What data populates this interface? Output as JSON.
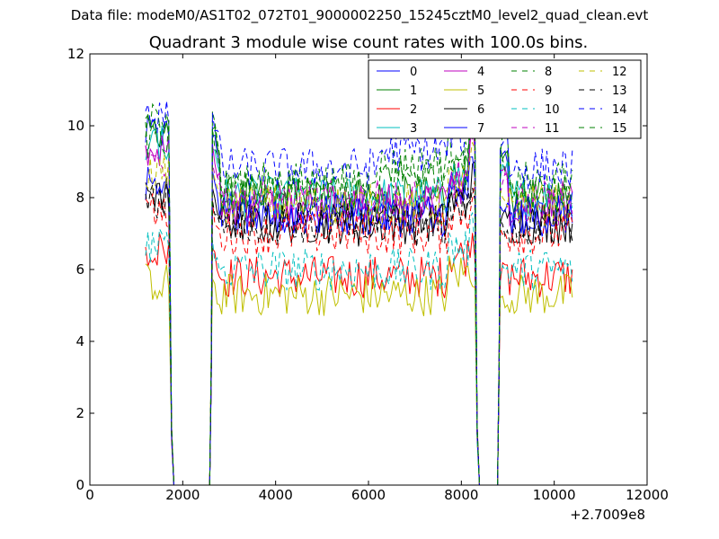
{
  "figure": {
    "suptitle": "Data file: modeM0/AS1T02_072T01_9000002250_15245cztM0_level2_quad_clean.evt",
    "title": "Quadrant 3 module wise count rates with 100.0s bins."
  },
  "chart_data": {
    "type": "line",
    "title": "Quadrant 3 module wise count rates with 100.0s bins.",
    "xlabel": "",
    "ylabel": "",
    "x_offset_label": "+2.7009e8",
    "xlim": [
      0,
      12000
    ],
    "ylim": [
      0,
      12
    ],
    "xticks": [
      0,
      2000,
      4000,
      6000,
      8000,
      10000,
      12000
    ],
    "yticks": [
      0,
      2,
      4,
      6,
      8,
      10,
      12
    ],
    "grid": false,
    "legend": {
      "location": "upper-right",
      "columns": 4
    },
    "segments": [
      [
        1200,
        1720
      ],
      [
        2640,
        8300
      ],
      [
        8840,
        10400
      ]
    ],
    "gaps": [
      [
        1720,
        2640
      ],
      [
        8300,
        8840
      ]
    ],
    "series": [
      {
        "name": "0",
        "color": "#0000ff",
        "dash": "solid",
        "base": 7.6,
        "peak": 10.1
      },
      {
        "name": "1",
        "color": "#008000",
        "dash": "solid",
        "base": 8.0,
        "peak": 10.3
      },
      {
        "name": "2",
        "color": "#ff0000",
        "dash": "solid",
        "base": 5.8,
        "peak": 6.9
      },
      {
        "name": "3",
        "color": "#00bfbf",
        "dash": "solid",
        "base": 8.0,
        "peak": 9.8
      },
      {
        "name": "4",
        "color": "#bf00bf",
        "dash": "solid",
        "base": 7.8,
        "peak": 9.6
      },
      {
        "name": "5",
        "color": "#bfbf00",
        "dash": "solid",
        "base": 5.3,
        "peak": 6.0
      },
      {
        "name": "6",
        "color": "#000000",
        "dash": "solid",
        "base": 7.3,
        "peak": 8.5
      },
      {
        "name": "7",
        "color": "#0000ff",
        "dash": "solid",
        "base": 7.5,
        "peak": 8.8
      },
      {
        "name": "8",
        "color": "#008000",
        "dash": "dashed",
        "base": 8.4,
        "peak": 10.5
      },
      {
        "name": "9",
        "color": "#ff0000",
        "dash": "dashed",
        "base": 7.0,
        "peak": 8.0
      },
      {
        "name": "10",
        "color": "#00bfbf",
        "dash": "dashed",
        "base": 6.0,
        "peak": 7.0
      },
      {
        "name": "11",
        "color": "#bf00bf",
        "dash": "dashed",
        "base": 7.9,
        "peak": 9.4
      },
      {
        "name": "12",
        "color": "#bfbf00",
        "dash": "dashed",
        "base": 7.8,
        "peak": 9.0
      },
      {
        "name": "13",
        "color": "#000000",
        "dash": "dashed",
        "base": 7.2,
        "peak": 8.2
      },
      {
        "name": "14",
        "color": "#0000ff",
        "dash": "dashed",
        "base": 8.8,
        "peak": 10.6
      },
      {
        "name": "15",
        "color": "#008000",
        "dash": "dashed",
        "base": 8.2,
        "peak": 10.0
      }
    ]
  }
}
